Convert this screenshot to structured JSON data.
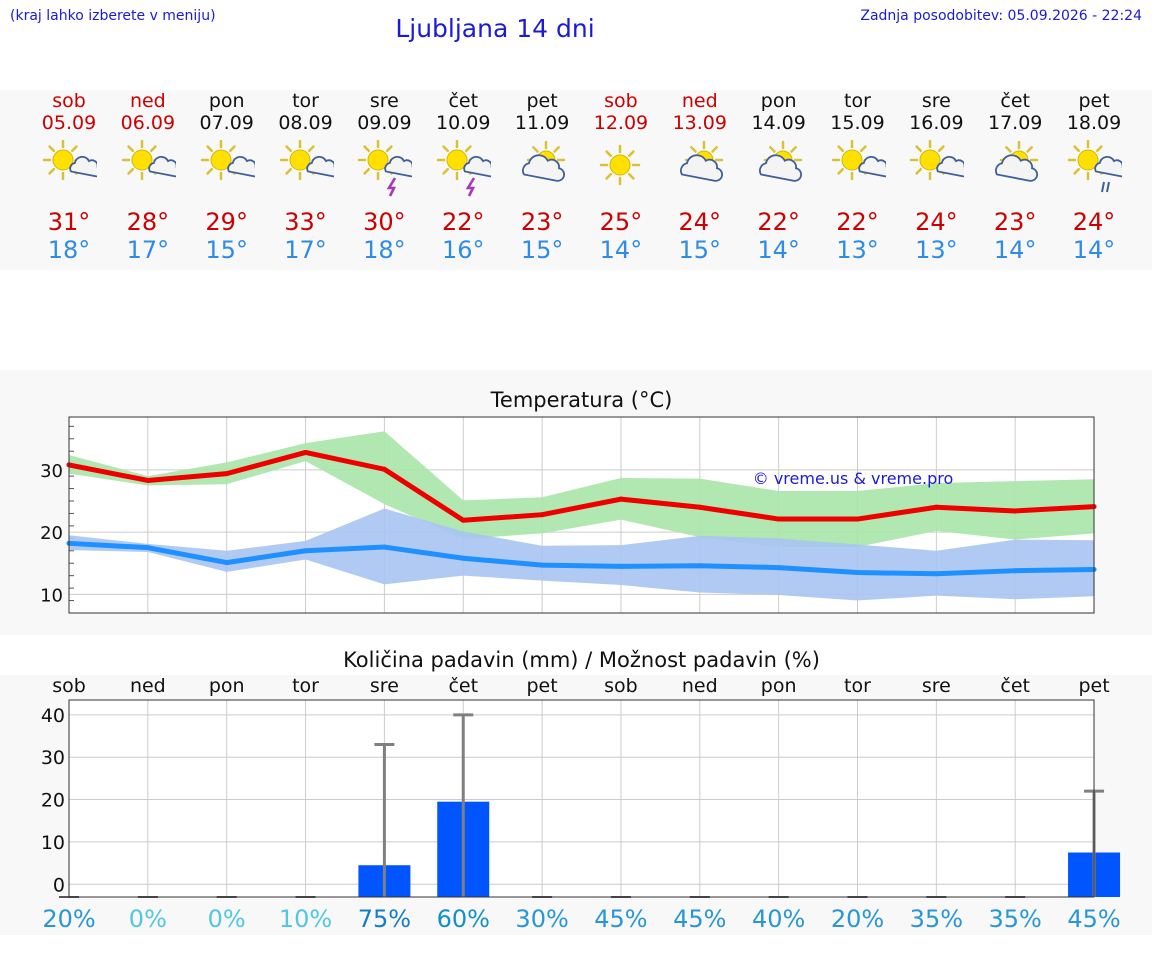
{
  "header": {
    "hint": "(kraj lahko izberete v meniju)",
    "title": "Ljubljana 14 dni",
    "updated": "Zadnja posodobitev: 05.09.2026 - 22:24"
  },
  "forecast": [
    {
      "day": "sob",
      "date": "05.09",
      "max": "31°",
      "min": "18°",
      "weekend": true,
      "icon": "sun-cloud-icon"
    },
    {
      "day": "ned",
      "date": "06.09",
      "max": "28°",
      "min": "17°",
      "weekend": true,
      "icon": "sun-cloud-icon"
    },
    {
      "day": "pon",
      "date": "07.09",
      "max": "29°",
      "min": "15°",
      "weekend": false,
      "icon": "sun-cloud-icon"
    },
    {
      "day": "tor",
      "date": "08.09",
      "max": "33°",
      "min": "17°",
      "weekend": false,
      "icon": "sun-cloud-icon"
    },
    {
      "day": "sre",
      "date": "09.09",
      "max": "30°",
      "min": "18°",
      "weekend": false,
      "icon": "sun-storm-icon"
    },
    {
      "day": "čet",
      "date": "10.09",
      "max": "22°",
      "min": "16°",
      "weekend": false,
      "icon": "sun-storm-icon"
    },
    {
      "day": "pet",
      "date": "11.09",
      "max": "23°",
      "min": "15°",
      "weekend": false,
      "icon": "cloud-sun-icon"
    },
    {
      "day": "sob",
      "date": "12.09",
      "max": "25°",
      "min": "14°",
      "weekend": true,
      "icon": "sun-icon"
    },
    {
      "day": "ned",
      "date": "13.09",
      "max": "24°",
      "min": "15°",
      "weekend": true,
      "icon": "cloud-sun-icon"
    },
    {
      "day": "pon",
      "date": "14.09",
      "max": "22°",
      "min": "14°",
      "weekend": false,
      "icon": "cloud-sun-icon"
    },
    {
      "day": "tor",
      "date": "15.09",
      "max": "22°",
      "min": "13°",
      "weekend": false,
      "icon": "sun-cloud-icon"
    },
    {
      "day": "sre",
      "date": "16.09",
      "max": "24°",
      "min": "13°",
      "weekend": false,
      "icon": "sun-cloud-icon"
    },
    {
      "day": "čet",
      "date": "17.09",
      "max": "23°",
      "min": "14°",
      "weekend": false,
      "icon": "cloud-sun-icon"
    },
    {
      "day": "pet",
      "date": "18.09",
      "max": "24°",
      "min": "14°",
      "weekend": false,
      "icon": "sun-rain-icon"
    }
  ],
  "colors": {
    "max_line": "#ee0000",
    "max_band": "#a8e6a8",
    "min_line": "#1e90ff",
    "min_band": "#a9c4f2",
    "rain_bar": "#0055ff",
    "whisker": "#808080"
  },
  "chart_data": [
    {
      "type": "line",
      "title": "Temperatura (°C)",
      "watermark": "© vreme.us & vreme.pro",
      "ylim": [
        7,
        38.5
      ],
      "yticks": [
        10,
        20,
        30
      ],
      "grid": true,
      "x": [
        "05.09",
        "06.09",
        "07.09",
        "08.09",
        "09.09",
        "10.09",
        "11.09",
        "12.09",
        "13.09",
        "14.09",
        "15.09",
        "16.09",
        "17.09",
        "18.09"
      ],
      "series": [
        {
          "values": [
            30.8,
            28.3,
            29.4,
            32.8,
            30.1,
            21.9,
            22.8,
            25.3,
            24.0,
            22.1,
            22.1,
            24.0,
            23.4,
            24.1
          ],
          "band_low": [
            29.4,
            27.5,
            27.7,
            31.4,
            24.5,
            18.9,
            19.8,
            22.0,
            19.2,
            17.6,
            17.6,
            20.2,
            18.8,
            19.8
          ],
          "band_high": [
            32.4,
            29.0,
            31.2,
            34.3,
            36.2,
            25.1,
            25.6,
            28.7,
            28.6,
            26.6,
            26.6,
            27.9,
            28.2,
            28.5
          ]
        },
        {
          "values": [
            18.2,
            17.5,
            15.1,
            17.0,
            17.6,
            15.8,
            14.7,
            14.5,
            14.6,
            14.3,
            13.5,
            13.3,
            13.8,
            14.0
          ],
          "band_low": [
            17.1,
            16.8,
            13.6,
            15.6,
            11.6,
            13.0,
            12.2,
            11.5,
            10.3,
            9.9,
            9.0,
            9.8,
            9.2,
            9.7
          ],
          "band_high": [
            19.5,
            18.1,
            17.0,
            18.6,
            23.8,
            20.1,
            17.8,
            17.9,
            19.4,
            19.0,
            18.0,
            17.0,
            18.8,
            18.7
          ]
        }
      ]
    },
    {
      "type": "bar",
      "title": "Količina padavin (mm) / Možnost padavin (%)",
      "categories": [
        "sob",
        "ned",
        "pon",
        "tor",
        "sre",
        "čet",
        "pet",
        "sob",
        "ned",
        "pon",
        "tor",
        "sre",
        "čet",
        "pet"
      ],
      "ylim": [
        -3,
        43.5
      ],
      "yticks": [
        0,
        10,
        20,
        30,
        40
      ],
      "grid": true,
      "values": [
        0,
        0,
        0,
        0,
        4.5,
        19.5,
        0,
        0,
        0,
        0,
        0,
        0,
        0,
        7.5
      ],
      "whisker_high": [
        0,
        0,
        0,
        0,
        33,
        40,
        0,
        0,
        0,
        0,
        0,
        0,
        0,
        22
      ],
      "probability": [
        "20%",
        "0%",
        "0%",
        "10%",
        "75%",
        "60%",
        "30%",
        "45%",
        "45%",
        "40%",
        "20%",
        "35%",
        "35%",
        "45%"
      ],
      "probability_values": [
        20,
        0,
        0,
        10,
        75,
        60,
        30,
        45,
        45,
        40,
        20,
        35,
        35,
        45
      ]
    }
  ]
}
